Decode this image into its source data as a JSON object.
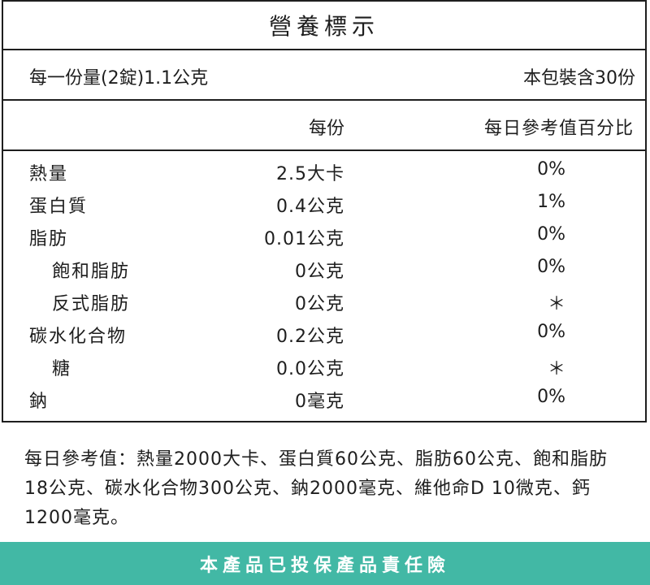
{
  "title": "營養標示",
  "serving": {
    "size": "每一份量(2錠)1.1公克",
    "servings_per_package": "本包裝含30份"
  },
  "columns": {
    "per_serving": "每份",
    "daily_value_pct": "每日參考值百分比"
  },
  "nutrients": [
    {
      "name": "熱量",
      "amount": "2.5大卡",
      "pct": "0%",
      "indent": false
    },
    {
      "name": "蛋白質",
      "amount": "0.4公克",
      "pct": "1%",
      "indent": false
    },
    {
      "name": "脂肪",
      "amount": "0.01公克",
      "pct": "0%",
      "indent": false
    },
    {
      "name": "飽和脂肪",
      "amount": "0公克",
      "pct": "0%",
      "indent": true
    },
    {
      "name": "反式脂肪",
      "amount": "0公克",
      "pct": "＊",
      "indent": true
    },
    {
      "name": "碳水化合物",
      "amount": "0.2公克",
      "pct": "0%",
      "indent": false
    },
    {
      "name": "糖",
      "amount": "0.0公克",
      "pct": "＊",
      "indent": true
    },
    {
      "name": "鈉",
      "amount": "0毫克",
      "pct": "0%",
      "indent": false
    }
  ],
  "daily_reference_note": "每日參考值：熱量2000大卡、蛋白質60公克、脂肪60公克、飽和脂肪18公克、碳水化合物300公克、鈉2000毫克、維他命D 10微克、鈣1200毫克。",
  "banner": {
    "text": "本產品已投保產品責任險",
    "color": "#42b8a5"
  }
}
